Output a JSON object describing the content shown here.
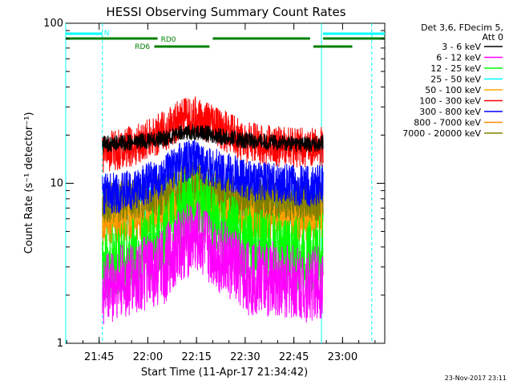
{
  "chart_data": {
    "type": "line",
    "title": "HESSI Observing Summary Count Rates",
    "xlabel": "Start Time (11-Apr-17 21:34:42)",
    "ylabel": "Count Rate (s⁻¹ detector⁻¹)",
    "y_scale": "log",
    "ylim": [
      1,
      100
    ],
    "xlim": [
      "21:34:42",
      "23:13:00"
    ],
    "x_ticks": [
      "21:45",
      "22:00",
      "22:15",
      "22:30",
      "22:45",
      "23:00"
    ],
    "y_ticks": [
      1,
      10,
      100
    ],
    "legend_header": "Det 3,6, FDecim 5,",
    "legend_header2": "Att 0",
    "legend_position": "right",
    "footer": "23-Nov-2017 23:11",
    "series": [
      {
        "name": "3 - 6 keV",
        "color": "#000000",
        "x": [
          "21:46:00",
          "21:55:00",
          "22:05:00",
          "22:10:00",
          "22:15:00",
          "22:20:00",
          "22:30:00",
          "22:40:00",
          "22:50:00",
          "22:54:00"
        ],
        "y": [
          17.5,
          18,
          19,
          20.5,
          21,
          20,
          18.5,
          18,
          17.5,
          18
        ]
      },
      {
        "name": "6 - 12 keV",
        "color": "#ff00ff",
        "x": [
          "21:46:00",
          "21:55:00",
          "22:05:00",
          "22:10:00",
          "22:15:00",
          "22:20:00",
          "22:30:00",
          "22:40:00",
          "22:50:00",
          "22:54:00"
        ],
        "y": [
          2.2,
          2.5,
          3,
          4.2,
          4.6,
          3.8,
          2.6,
          2.5,
          2.3,
          2.5
        ]
      },
      {
        "name": "12 - 25 keV",
        "color": "#00ff00",
        "x": [
          "21:46:00",
          "21:55:00",
          "22:05:00",
          "22:10:00",
          "22:15:00",
          "22:20:00",
          "22:30:00",
          "22:40:00",
          "22:50:00",
          "22:54:00"
        ],
        "y": [
          3.2,
          3.5,
          4.5,
          6.5,
          7,
          5.8,
          4.2,
          3.8,
          3.5,
          3.8
        ]
      },
      {
        "name": "25 - 50 keV",
        "color": "#00ffff",
        "x": [
          "21:46:00",
          "21:55:00",
          "22:05:00",
          "22:10:00",
          "22:15:00",
          "22:20:00",
          "22:30:00",
          "22:40:00",
          "22:50:00",
          "22:54:00"
        ],
        "y": [
          7,
          7.2,
          8,
          9.5,
          10,
          9,
          8,
          7.5,
          7.2,
          7.5
        ]
      },
      {
        "name": "50 - 100 keV",
        "color": "#ffa500",
        "x": [
          "21:46:00",
          "21:55:00",
          "22:05:00",
          "22:10:00",
          "22:15:00",
          "22:20:00",
          "22:30:00",
          "22:40:00",
          "22:50:00",
          "22:54:00"
        ],
        "y": [
          6.5,
          6.8,
          7.5,
          8.8,
          9.2,
          8.2,
          7.2,
          6.9,
          6.6,
          6.8
        ]
      },
      {
        "name": "100 - 300 keV",
        "color": "#ff0000",
        "x": [
          "21:46:00",
          "21:55:00",
          "22:05:00",
          "22:10:00",
          "22:15:00",
          "22:20:00",
          "22:30:00",
          "22:40:00",
          "22:50:00",
          "22:54:00"
        ],
        "y": [
          15.5,
          17,
          21,
          25,
          26,
          23,
          18,
          17,
          16.5,
          17
        ]
      },
      {
        "name": "300 - 800 keV",
        "color": "#0000ff",
        "x": [
          "21:46:00",
          "21:55:00",
          "22:05:00",
          "22:10:00",
          "22:15:00",
          "22:20:00",
          "22:30:00",
          "22:40:00",
          "22:50:00",
          "22:54:00"
        ],
        "y": [
          8.5,
          9,
          11,
          13.5,
          14,
          12.5,
          10.5,
          10,
          9.5,
          10
        ]
      },
      {
        "name": "800 - 7000 keV",
        "color": "#ff8c00",
        "x": [
          "21:46:00",
          "21:55:00",
          "22:05:00",
          "22:10:00",
          "22:15:00",
          "22:20:00",
          "22:30:00",
          "22:40:00",
          "22:50:00",
          "22:54:00"
        ],
        "y": [
          5.5,
          5.8,
          6.5,
          7.8,
          8.2,
          7.2,
          6.2,
          6,
          5.7,
          6
        ]
      },
      {
        "name": "7000 - 20000 keV",
        "color": "#808000",
        "x": [
          "21:46:00",
          "21:55:00",
          "22:05:00",
          "22:10:00",
          "22:15:00",
          "22:20:00",
          "22:30:00",
          "22:40:00",
          "22:50:00",
          "22:54:00"
        ],
        "y": [
          7.5,
          7.8,
          8.5,
          9.8,
          10.2,
          9.2,
          8.2,
          8,
          7.6,
          8
        ]
      }
    ],
    "status_bars": [
      {
        "label": "N",
        "color": "#00ffff",
        "segments": [
          [
            "21:34:42",
            "21:46:00"
          ],
          [
            "22:54:00",
            "23:13:00"
          ]
        ],
        "label_at": "21:46:30"
      },
      {
        "label": "RD0",
        "color": "#008000",
        "segments": [
          [
            "21:34:42",
            "22:03:00"
          ],
          [
            "22:20:00",
            "22:50:00"
          ],
          [
            "22:54:00",
            "23:13:00"
          ]
        ],
        "label_at": "22:04:00"
      },
      {
        "label": "RD6",
        "color": "#008000",
        "segments": [
          [
            "22:02:00",
            "22:19:00"
          ],
          [
            "22:51:00",
            "23:03:00"
          ]
        ],
        "label_at": "21:56:00"
      }
    ],
    "vertical_lines": [
      {
        "time": "21:34:42",
        "color": "#00ffff",
        "style": "solid"
      },
      {
        "time": "21:46:00",
        "color": "#00ffff",
        "style": "dashed"
      },
      {
        "time": "22:53:30",
        "color": "#00ffff",
        "style": "solid"
      },
      {
        "time": "23:09:00",
        "color": "#00ffff",
        "style": "dashed"
      }
    ]
  }
}
